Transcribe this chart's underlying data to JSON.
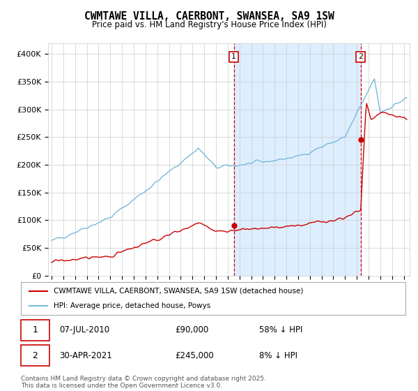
{
  "title": "CWMTAWE VILLA, CAERBONT, SWANSEA, SA9 1SW",
  "subtitle": "Price paid vs. HM Land Registry's House Price Index (HPI)",
  "ylabel_ticks": [
    "£0",
    "£50K",
    "£100K",
    "£150K",
    "£200K",
    "£250K",
    "£300K",
    "£350K",
    "£400K"
  ],
  "ytick_values": [
    0,
    50000,
    100000,
    150000,
    200000,
    250000,
    300000,
    350000,
    400000
  ],
  "ylim": [
    0,
    420000
  ],
  "xlim_start": 1994.7,
  "xlim_end": 2025.5,
  "hpi_color": "#7ab8d9",
  "price_color": "#cc0000",
  "shade_color": "#ddeeff",
  "point1_x": 2010.52,
  "point1_y": 90000,
  "point2_x": 2021.33,
  "point2_y": 245000,
  "legend_line1": "CWMTAWE VILLA, CAERBONT, SWANSEA, SA9 1SW (detached house)",
  "legend_line2": "HPI: Average price, detached house, Powys",
  "footer": "Contains HM Land Registry data © Crown copyright and database right 2025.\nThis data is licensed under the Open Government Licence v3.0.",
  "bg_color": "#ffffff",
  "grid_color": "#cccccc"
}
